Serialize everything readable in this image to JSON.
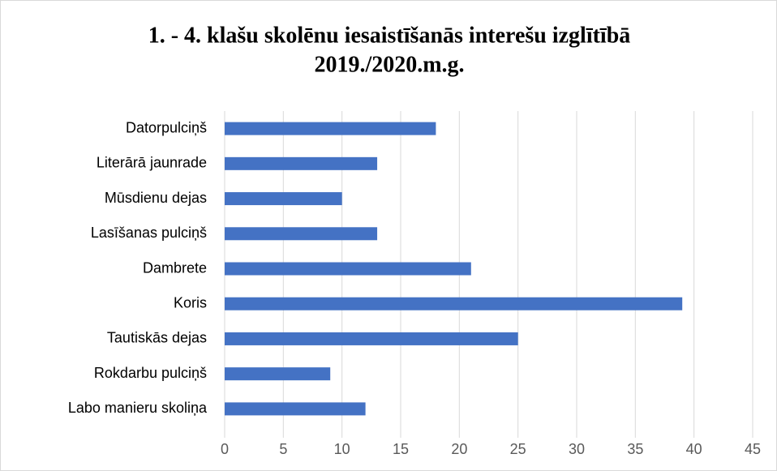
{
  "chart_data": {
    "type": "bar",
    "orientation": "horizontal",
    "title": [
      "1. - 4.  klašu skolēnu iesaistīšanās interešu izglītībā",
      "2019./2020.m.g."
    ],
    "categories": [
      "Datorpulciņš",
      "Literārā jaunrade",
      "Mūsdienu dejas",
      "Lasīšanas pulciņš",
      "Dambrete",
      "Koris",
      "Tautiskās dejas",
      "Rokdarbu pulciņš",
      "Labo manieru skoliņa"
    ],
    "values": [
      18,
      13,
      10,
      13,
      21,
      39,
      25,
      9,
      12
    ],
    "color": "#4472c4",
    "xlim": [
      0,
      45
    ],
    "xticks": [
      0,
      5,
      10,
      15,
      20,
      25,
      30,
      35,
      40,
      45
    ],
    "grid": true
  }
}
